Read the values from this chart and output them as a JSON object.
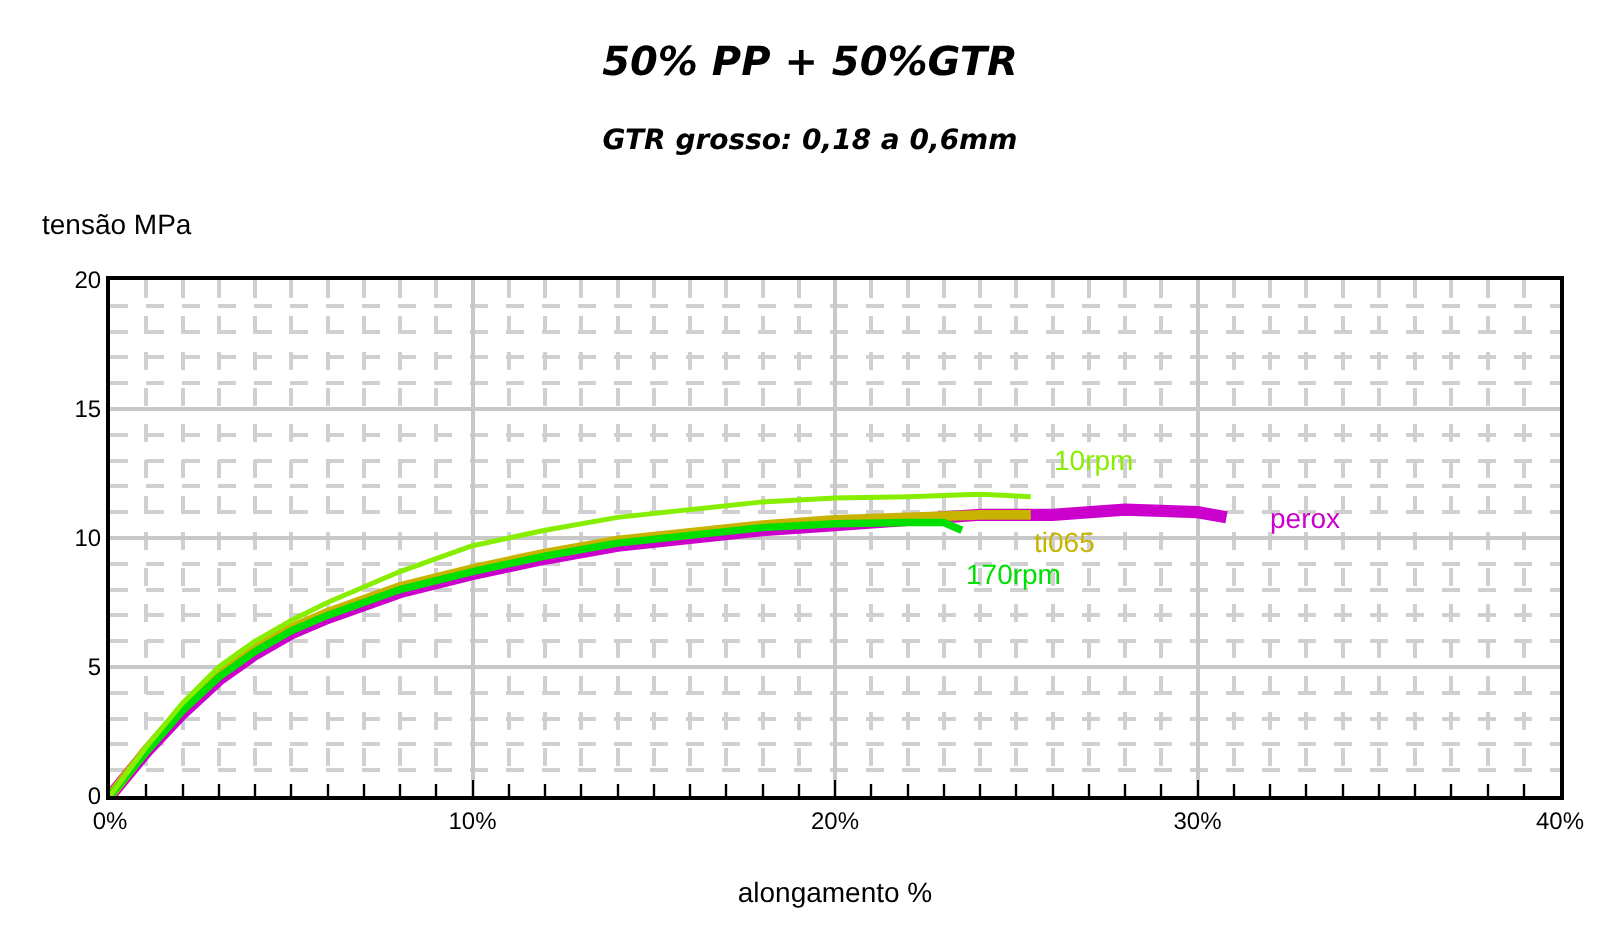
{
  "chart_data": {
    "type": "line",
    "title": "50% PP + 50%GTR",
    "subtitle": "GTR grosso: 0,18 a 0,6mm",
    "xlabel": "alongamento %",
    "ylabel": "tensão MPa",
    "xlim": [
      0,
      40
    ],
    "xticks": [
      {
        "value": 0,
        "label": "0%"
      },
      {
        "value": 10,
        "label": "10%"
      },
      {
        "value": 20,
        "label": "20%"
      },
      {
        "value": 30,
        "label": "30%"
      },
      {
        "value": 40,
        "label": "40%"
      }
    ],
    "ylim": [
      0,
      20
    ],
    "yticks": [
      0,
      5,
      10,
      15,
      20
    ],
    "grid": true,
    "legend": false,
    "marker": "none",
    "line_style": "solid",
    "series": [
      {
        "name": "perox",
        "color": "#cc00cc",
        "x": [
          0,
          1,
          2,
          3,
          4,
          5,
          6,
          8,
          10,
          12,
          14,
          16,
          18,
          20,
          22,
          24,
          26,
          28,
          30,
          30.8
        ],
        "values": [
          0,
          1.7,
          3.2,
          4.5,
          5.5,
          6.3,
          6.9,
          7.9,
          8.6,
          9.2,
          9.7,
          10.0,
          10.3,
          10.5,
          10.7,
          10.9,
          10.9,
          11.1,
          11.0,
          10.8
        ]
      },
      {
        "name": "ti065",
        "color": "#c8b400",
        "x": [
          0,
          1,
          2,
          3,
          4,
          5,
          6,
          8,
          10,
          12,
          14,
          16,
          18,
          20,
          22,
          24,
          25.4
        ],
        "values": [
          0,
          1.8,
          3.4,
          4.7,
          5.7,
          6.5,
          7.1,
          8.1,
          8.8,
          9.4,
          9.9,
          10.2,
          10.5,
          10.7,
          10.8,
          10.9,
          10.9
        ]
      },
      {
        "name": "170rpm",
        "color": "#00e000",
        "x": [
          0,
          1,
          2,
          3,
          4,
          5,
          6,
          8,
          10,
          12,
          14,
          16,
          18,
          20,
          22,
          23,
          23.5
        ],
        "values": [
          0,
          1.7,
          3.3,
          4.6,
          5.6,
          6.4,
          7.0,
          8.0,
          8.7,
          9.3,
          9.8,
          10.1,
          10.4,
          10.55,
          10.6,
          10.6,
          10.3
        ]
      },
      {
        "name": "10rpm",
        "color": "#88ee00",
        "x": [
          0,
          1,
          2,
          3,
          4,
          5,
          6,
          8,
          10,
          12,
          14,
          16,
          18,
          20,
          22,
          24,
          25.4
        ],
        "values": [
          0,
          1.9,
          3.6,
          5.0,
          6.0,
          6.8,
          7.5,
          8.7,
          9.7,
          10.3,
          10.8,
          11.1,
          11.4,
          11.55,
          11.6,
          11.7,
          11.6
        ]
      }
    ]
  }
}
